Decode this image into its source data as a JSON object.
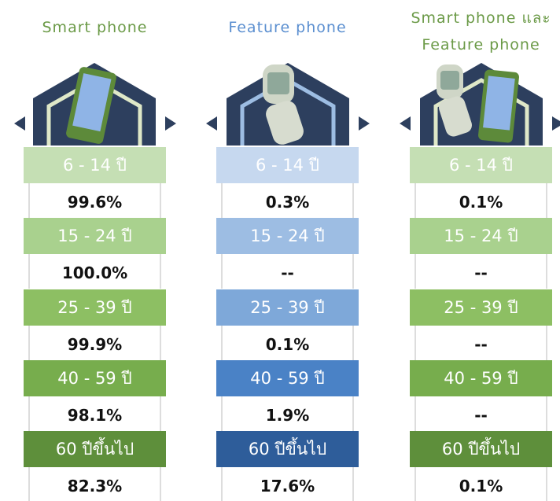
{
  "columns": [
    {
      "title": [
        "Smart phone"
      ],
      "rows": [
        {
          "age": "6 - 14 ปี",
          "value": "99.6%"
        },
        {
          "age": "15 - 24 ปี",
          "value": "100.0%"
        },
        {
          "age": "25 - 39 ปี",
          "value": "99.9%"
        },
        {
          "age": "40 - 59 ปี",
          "value": "98.1%"
        },
        {
          "age": "60 ปีขึ้นไป",
          "value": "82.3%"
        }
      ]
    },
    {
      "title": [
        "Feature phone"
      ],
      "rows": [
        {
          "age": "6 - 14 ปี",
          "value": "0.3%"
        },
        {
          "age": "15 - 24 ปี",
          "value": "--"
        },
        {
          "age": "25 - 39 ปี",
          "value": "0.1%"
        },
        {
          "age": "40 - 59 ปี",
          "value": "1.9%"
        },
        {
          "age": "60 ปีขึ้นไป",
          "value": "17.6%"
        }
      ]
    },
    {
      "title": [
        "Smart phone และ",
        "Feature phone"
      ],
      "rows": [
        {
          "age": "6 - 14 ปี",
          "value": "0.1%"
        },
        {
          "age": "15 - 24 ปี",
          "value": "--"
        },
        {
          "age": "25 - 39 ปี",
          "value": "--"
        },
        {
          "age": "40 - 59 ปี",
          "value": "--"
        },
        {
          "age": "60 ปีขึ้นไป",
          "value": "0.1%"
        }
      ]
    }
  ]
}
